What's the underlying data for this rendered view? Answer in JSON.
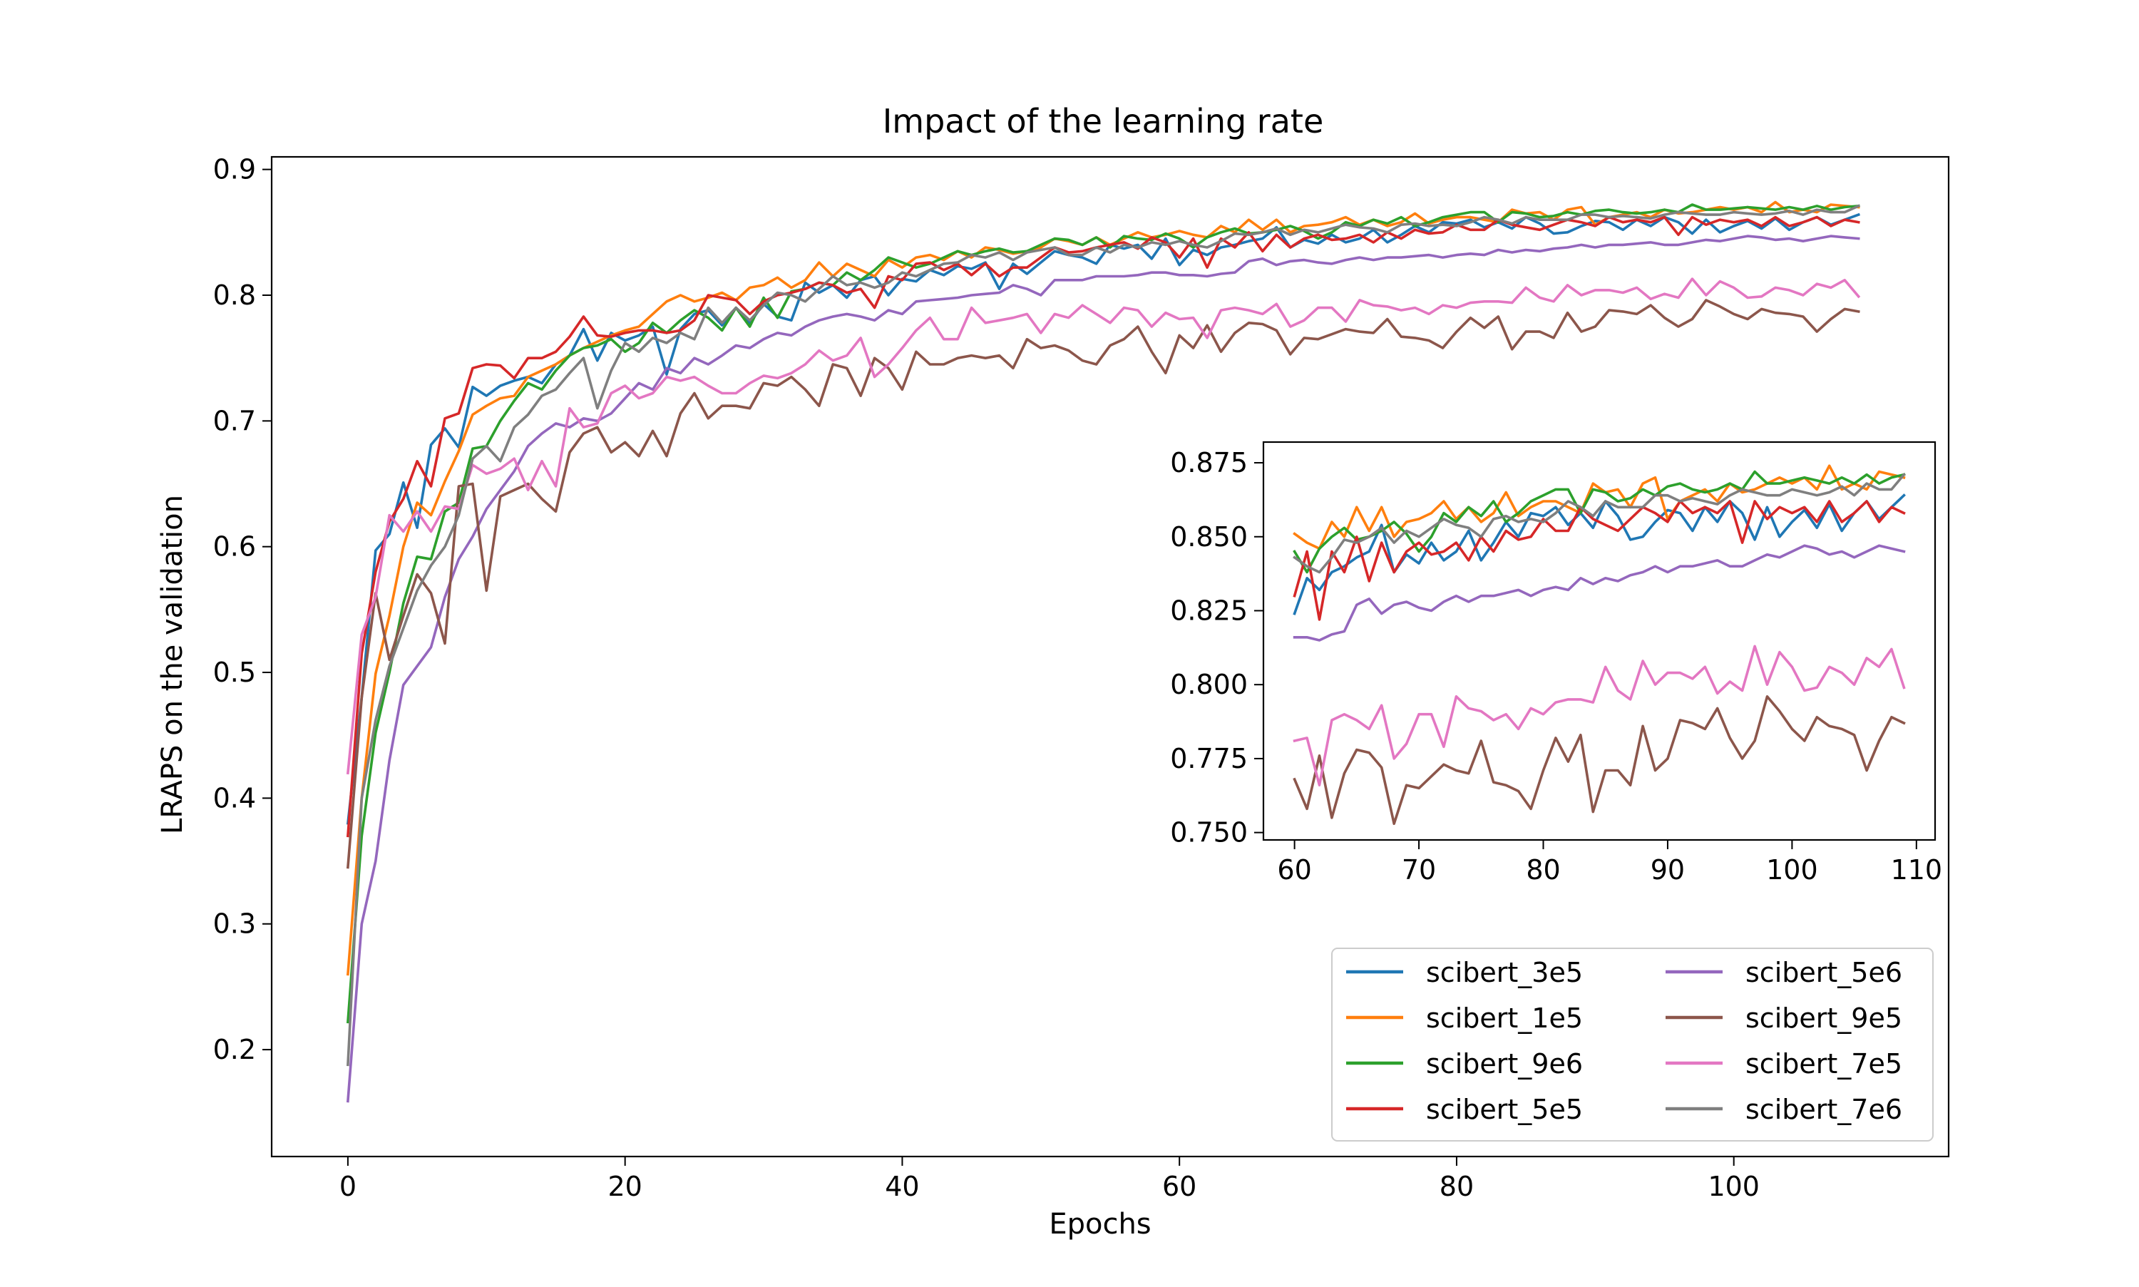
{
  "chart_data": {
    "type": "line",
    "title": "Impact of the learning rate",
    "xlabel": "Epochs",
    "ylabel": "LRAPS on the validation",
    "xlim": [
      -5.5,
      115.5
    ],
    "ylim": [
      0.115,
      0.91
    ],
    "xticks": [
      0,
      20,
      40,
      60,
      80,
      100
    ],
    "yticks": [
      0.2,
      0.3,
      0.4,
      0.5,
      0.6,
      0.7,
      0.8,
      0.9
    ],
    "grid": false,
    "legend": {
      "placement": "lower-right",
      "columns": 2
    },
    "x": [
      0,
      1,
      2,
      3,
      4,
      5,
      6,
      7,
      8,
      9,
      10,
      11,
      12,
      13,
      14,
      15,
      16,
      17,
      18,
      19,
      20,
      21,
      22,
      23,
      24,
      25,
      26,
      27,
      28,
      29,
      30,
      31,
      32,
      33,
      34,
      35,
      36,
      37,
      38,
      39,
      40,
      41,
      42,
      43,
      44,
      45,
      46,
      47,
      48,
      49,
      50,
      51,
      52,
      53,
      54,
      55,
      56,
      57,
      58,
      59,
      60,
      61,
      62,
      63,
      64,
      65,
      66,
      67,
      68,
      69,
      70,
      71,
      72,
      73,
      74,
      75,
      76,
      77,
      78,
      79,
      80,
      81,
      82,
      83,
      84,
      85,
      86,
      87,
      88,
      89,
      90,
      91,
      92,
      93,
      94,
      95,
      96,
      97,
      98,
      99,
      100,
      101,
      102,
      103,
      104,
      105,
      106,
      107,
      108,
      109
    ],
    "series": [
      {
        "name": "scibert_3e5",
        "color": "#1f77b4",
        "values": [
          0.38,
          0.48,
          0.597,
          0.61,
          0.651,
          0.615,
          0.681,
          0.694,
          0.679,
          0.727,
          0.72,
          0.728,
          0.732,
          0.735,
          0.73,
          0.745,
          0.752,
          0.773,
          0.748,
          0.77,
          0.764,
          0.768,
          0.775,
          0.737,
          0.773,
          0.785,
          0.788,
          0.776,
          0.79,
          0.778,
          0.793,
          0.783,
          0.78,
          0.81,
          0.802,
          0.808,
          0.798,
          0.812,
          0.815,
          0.8,
          0.813,
          0.811,
          0.82,
          0.816,
          0.823,
          0.821,
          0.826,
          0.805,
          0.825,
          0.817,
          0.826,
          0.835,
          0.832,
          0.83,
          0.825,
          0.84,
          0.837,
          0.84,
          0.829,
          0.845,
          0.824,
          0.836,
          0.832,
          0.838,
          0.84,
          0.843,
          0.845,
          0.854,
          0.838,
          0.844,
          0.841,
          0.848,
          0.842,
          0.845,
          0.852,
          0.842,
          0.848,
          0.855,
          0.85,
          0.858,
          0.857,
          0.86,
          0.854,
          0.858,
          0.853,
          0.862,
          0.857,
          0.849,
          0.85,
          0.855,
          0.859,
          0.858,
          0.852,
          0.86,
          0.855,
          0.862,
          0.858,
          0.849,
          0.86,
          0.85,
          0.855,
          0.859,
          0.853,
          0.861,
          0.852,
          0.858,
          0.862,
          0.856,
          0.86,
          0.864
        ]
      },
      {
        "name": "scibert_1e5",
        "color": "#ff7f0e",
        "values": [
          0.26,
          0.4,
          0.499,
          0.545,
          0.6,
          0.635,
          0.625,
          0.652,
          0.676,
          0.705,
          0.712,
          0.718,
          0.72,
          0.735,
          0.74,
          0.745,
          0.752,
          0.758,
          0.763,
          0.768,
          0.772,
          0.775,
          0.785,
          0.795,
          0.8,
          0.795,
          0.798,
          0.802,
          0.796,
          0.806,
          0.808,
          0.814,
          0.806,
          0.812,
          0.826,
          0.815,
          0.825,
          0.82,
          0.815,
          0.828,
          0.822,
          0.83,
          0.832,
          0.828,
          0.835,
          0.83,
          0.838,
          0.836,
          0.833,
          0.835,
          0.838,
          0.845,
          0.843,
          0.84,
          0.846,
          0.84,
          0.845,
          0.85,
          0.846,
          0.848,
          0.851,
          0.848,
          0.846,
          0.855,
          0.85,
          0.86,
          0.852,
          0.86,
          0.85,
          0.855,
          0.856,
          0.858,
          0.862,
          0.856,
          0.86,
          0.855,
          0.858,
          0.865,
          0.857,
          0.86,
          0.862,
          0.862,
          0.86,
          0.858,
          0.868,
          0.865,
          0.866,
          0.86,
          0.868,
          0.87,
          0.856,
          0.862,
          0.864,
          0.866,
          0.862,
          0.868,
          0.865,
          0.866,
          0.868,
          0.87,
          0.868,
          0.87,
          0.866,
          0.874,
          0.866,
          0.868,
          0.866,
          0.872,
          0.871,
          0.87
        ]
      },
      {
        "name": "scibert_9e6",
        "color": "#2ca02c",
        "values": [
          0.222,
          0.37,
          0.452,
          0.5,
          0.555,
          0.592,
          0.59,
          0.628,
          0.635,
          0.678,
          0.68,
          0.7,
          0.716,
          0.73,
          0.725,
          0.74,
          0.752,
          0.758,
          0.76,
          0.765,
          0.755,
          0.762,
          0.778,
          0.77,
          0.78,
          0.788,
          0.782,
          0.772,
          0.79,
          0.775,
          0.798,
          0.782,
          0.803,
          0.805,
          0.81,
          0.808,
          0.818,
          0.812,
          0.82,
          0.83,
          0.826,
          0.822,
          0.825,
          0.83,
          0.835,
          0.832,
          0.835,
          0.837,
          0.834,
          0.835,
          0.84,
          0.845,
          0.844,
          0.84,
          0.846,
          0.838,
          0.847,
          0.845,
          0.844,
          0.849,
          0.845,
          0.838,
          0.846,
          0.85,
          0.853,
          0.849,
          0.85,
          0.852,
          0.855,
          0.851,
          0.845,
          0.85,
          0.858,
          0.855,
          0.86,
          0.857,
          0.862,
          0.855,
          0.858,
          0.862,
          0.864,
          0.866,
          0.866,
          0.858,
          0.866,
          0.865,
          0.862,
          0.863,
          0.866,
          0.864,
          0.867,
          0.868,
          0.866,
          0.865,
          0.866,
          0.868,
          0.866,
          0.872,
          0.868,
          0.868,
          0.869,
          0.87,
          0.869,
          0.868,
          0.87,
          0.868,
          0.871,
          0.868,
          0.87,
          0.871
        ]
      },
      {
        "name": "scibert_5e5",
        "color": "#d62728",
        "values": [
          0.37,
          0.515,
          0.58,
          0.62,
          0.638,
          0.668,
          0.648,
          0.702,
          0.706,
          0.742,
          0.745,
          0.744,
          0.734,
          0.75,
          0.75,
          0.755,
          0.767,
          0.783,
          0.768,
          0.767,
          0.77,
          0.772,
          0.772,
          0.77,
          0.772,
          0.78,
          0.8,
          0.798,
          0.796,
          0.785,
          0.795,
          0.8,
          0.802,
          0.805,
          0.81,
          0.808,
          0.802,
          0.805,
          0.79,
          0.815,
          0.812,
          0.825,
          0.826,
          0.82,
          0.825,
          0.816,
          0.825,
          0.815,
          0.822,
          0.822,
          0.83,
          0.838,
          0.834,
          0.835,
          0.838,
          0.84,
          0.842,
          0.837,
          0.846,
          0.842,
          0.83,
          0.845,
          0.822,
          0.845,
          0.838,
          0.85,
          0.835,
          0.848,
          0.838,
          0.845,
          0.848,
          0.844,
          0.845,
          0.848,
          0.842,
          0.85,
          0.845,
          0.852,
          0.849,
          0.85,
          0.856,
          0.852,
          0.852,
          0.86,
          0.856,
          0.854,
          0.852,
          0.856,
          0.86,
          0.858,
          0.855,
          0.862,
          0.858,
          0.86,
          0.858,
          0.862,
          0.848,
          0.862,
          0.856,
          0.86,
          0.858,
          0.86,
          0.855,
          0.862,
          0.855,
          0.858,
          0.862,
          0.855,
          0.86,
          0.858
        ]
      },
      {
        "name": "scibert_5e6",
        "color": "#9467bd",
        "values": [
          0.159,
          0.3,
          0.35,
          0.43,
          0.49,
          0.505,
          0.52,
          0.56,
          0.59,
          0.608,
          0.63,
          0.645,
          0.66,
          0.68,
          0.69,
          0.698,
          0.695,
          0.702,
          0.7,
          0.706,
          0.718,
          0.73,
          0.725,
          0.742,
          0.738,
          0.75,
          0.745,
          0.752,
          0.76,
          0.758,
          0.765,
          0.77,
          0.768,
          0.775,
          0.78,
          0.783,
          0.785,
          0.783,
          0.78,
          0.788,
          0.785,
          0.795,
          0.796,
          0.797,
          0.798,
          0.8,
          0.801,
          0.802,
          0.808,
          0.805,
          0.8,
          0.812,
          0.812,
          0.812,
          0.815,
          0.815,
          0.815,
          0.816,
          0.818,
          0.818,
          0.816,
          0.816,
          0.815,
          0.817,
          0.818,
          0.827,
          0.829,
          0.824,
          0.827,
          0.828,
          0.826,
          0.825,
          0.828,
          0.83,
          0.828,
          0.83,
          0.83,
          0.831,
          0.832,
          0.83,
          0.832,
          0.833,
          0.832,
          0.836,
          0.834,
          0.836,
          0.835,
          0.837,
          0.838,
          0.84,
          0.838,
          0.84,
          0.84,
          0.841,
          0.842,
          0.84,
          0.84,
          0.842,
          0.844,
          0.843,
          0.845,
          0.847,
          0.846,
          0.844,
          0.845,
          0.843,
          0.845,
          0.847,
          0.846,
          0.845
        ]
      },
      {
        "name": "scibert_9e5",
        "color": "#8c564b",
        "values": [
          0.345,
          0.48,
          0.563,
          0.51,
          0.545,
          0.578,
          0.563,
          0.523,
          0.648,
          0.65,
          0.565,
          0.64,
          0.645,
          0.65,
          0.638,
          0.628,
          0.675,
          0.69,
          0.695,
          0.675,
          0.683,
          0.672,
          0.692,
          0.672,
          0.706,
          0.722,
          0.702,
          0.712,
          0.712,
          0.71,
          0.73,
          0.728,
          0.735,
          0.725,
          0.712,
          0.745,
          0.742,
          0.72,
          0.75,
          0.742,
          0.725,
          0.755,
          0.745,
          0.745,
          0.75,
          0.752,
          0.75,
          0.752,
          0.742,
          0.765,
          0.758,
          0.76,
          0.756,
          0.748,
          0.745,
          0.76,
          0.765,
          0.775,
          0.755,
          0.738,
          0.768,
          0.758,
          0.776,
          0.755,
          0.77,
          0.778,
          0.777,
          0.772,
          0.753,
          0.766,
          0.765,
          0.769,
          0.773,
          0.771,
          0.77,
          0.781,
          0.767,
          0.766,
          0.764,
          0.758,
          0.771,
          0.782,
          0.774,
          0.783,
          0.757,
          0.771,
          0.771,
          0.766,
          0.786,
          0.771,
          0.775,
          0.788,
          0.787,
          0.785,
          0.792,
          0.782,
          0.775,
          0.781,
          0.796,
          0.791,
          0.785,
          0.781,
          0.789,
          0.786,
          0.785,
          0.783,
          0.771,
          0.781,
          0.789,
          0.787
        ]
      },
      {
        "name": "scibert_7e5",
        "color": "#e377c2",
        "values": [
          0.42,
          0.53,
          0.56,
          0.625,
          0.612,
          0.628,
          0.612,
          0.632,
          0.63,
          0.665,
          0.658,
          0.662,
          0.67,
          0.645,
          0.668,
          0.648,
          0.71,
          0.695,
          0.698,
          0.722,
          0.728,
          0.718,
          0.722,
          0.735,
          0.732,
          0.735,
          0.728,
          0.722,
          0.722,
          0.73,
          0.736,
          0.734,
          0.738,
          0.745,
          0.756,
          0.748,
          0.752,
          0.766,
          0.735,
          0.745,
          0.758,
          0.772,
          0.782,
          0.765,
          0.765,
          0.79,
          0.778,
          0.78,
          0.782,
          0.785,
          0.77,
          0.785,
          0.782,
          0.792,
          0.785,
          0.778,
          0.79,
          0.788,
          0.775,
          0.786,
          0.781,
          0.782,
          0.766,
          0.788,
          0.79,
          0.788,
          0.785,
          0.793,
          0.775,
          0.78,
          0.79,
          0.79,
          0.779,
          0.796,
          0.792,
          0.791,
          0.788,
          0.79,
          0.785,
          0.792,
          0.79,
          0.794,
          0.795,
          0.795,
          0.794,
          0.806,
          0.798,
          0.795,
          0.808,
          0.8,
          0.804,
          0.804,
          0.802,
          0.806,
          0.797,
          0.801,
          0.798,
          0.813,
          0.8,
          0.811,
          0.806,
          0.798,
          0.799,
          0.806,
          0.804,
          0.8,
          0.809,
          0.806,
          0.812,
          0.799
        ]
      },
      {
        "name": "scibert_7e6",
        "color": "#7f7f7f",
        "values": [
          0.188,
          0.4,
          0.462,
          0.505,
          0.535,
          0.565,
          0.585,
          0.6,
          0.625,
          0.67,
          0.68,
          0.668,
          0.695,
          0.705,
          0.72,
          0.725,
          0.738,
          0.75,
          0.71,
          0.74,
          0.762,
          0.755,
          0.766,
          0.762,
          0.77,
          0.765,
          0.79,
          0.778,
          0.79,
          0.78,
          0.792,
          0.802,
          0.8,
          0.795,
          0.805,
          0.815,
          0.808,
          0.81,
          0.806,
          0.81,
          0.818,
          0.815,
          0.82,
          0.825,
          0.826,
          0.832,
          0.83,
          0.834,
          0.828,
          0.834,
          0.836,
          0.838,
          0.832,
          0.832,
          0.838,
          0.834,
          0.84,
          0.838,
          0.842,
          0.84,
          0.843,
          0.84,
          0.838,
          0.843,
          0.849,
          0.848,
          0.85,
          0.853,
          0.848,
          0.852,
          0.85,
          0.853,
          0.856,
          0.854,
          0.853,
          0.85,
          0.856,
          0.857,
          0.855,
          0.856,
          0.855,
          0.858,
          0.862,
          0.86,
          0.857,
          0.862,
          0.86,
          0.86,
          0.86,
          0.864,
          0.864,
          0.862,
          0.863,
          0.862,
          0.861,
          0.864,
          0.866,
          0.865,
          0.864,
          0.864,
          0.866,
          0.865,
          0.864,
          0.865,
          0.867,
          0.864,
          0.868,
          0.866,
          0.866,
          0.871
        ]
      }
    ],
    "inset": {
      "xlim": [
        57.5,
        111.5
      ],
      "ylim": [
        0.7475,
        0.882
      ],
      "x_start": 60,
      "xticks": [
        60,
        70,
        80,
        90,
        100,
        110
      ],
      "yticks": [
        0.75,
        0.775,
        0.8,
        0.825,
        0.85,
        0.875
      ],
      "ytick_labels": [
        "0.750",
        "0.775",
        "0.800",
        "0.825",
        "0.850",
        "0.875"
      ]
    }
  }
}
